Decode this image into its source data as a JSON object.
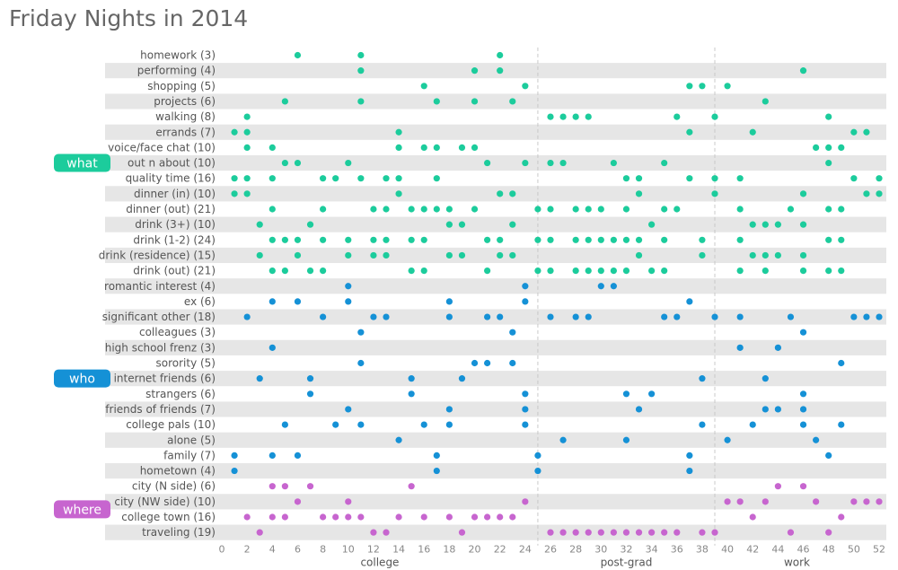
{
  "chart_data": {
    "type": "scatter",
    "title": "Friday Nights in 2014",
    "x_ticks": [
      0,
      2,
      4,
      6,
      8,
      10,
      12,
      14,
      16,
      18,
      20,
      22,
      24,
      26,
      28,
      30,
      32,
      34,
      36,
      38,
      40,
      42,
      44,
      46,
      48,
      50,
      52
    ],
    "xlim": [
      0,
      52
    ],
    "grid": "vertical dashed lines at x = 25 and x = 39 separating periods",
    "periods": [
      {
        "label": "college",
        "from": 0,
        "to": 25
      },
      {
        "label": "post-grad",
        "from": 25,
        "to": 39
      },
      {
        "label": "work",
        "from": 39,
        "to": 52
      }
    ],
    "categories": [
      {
        "label": "what",
        "color": "#1ccc9c"
      },
      {
        "label": "who",
        "color": "#1591d6"
      },
      {
        "label": "where",
        "color": "#c765cf"
      }
    ],
    "rows": [
      {
        "label": "homework (3)",
        "category": "what",
        "weeks": [
          6,
          11,
          22
        ]
      },
      {
        "label": "performing (4)",
        "category": "what",
        "weeks": [
          11,
          20,
          22,
          46
        ]
      },
      {
        "label": "shopping (5)",
        "category": "what",
        "weeks": [
          16,
          24,
          37,
          38,
          40
        ]
      },
      {
        "label": "projects (6)",
        "category": "what",
        "weeks": [
          5,
          11,
          17,
          20,
          23,
          43
        ]
      },
      {
        "label": "walking (8)",
        "category": "what",
        "weeks": [
          2,
          26,
          27,
          28,
          29,
          36,
          39,
          48
        ]
      },
      {
        "label": "errands (7)",
        "category": "what",
        "weeks": [
          1,
          2,
          14,
          37,
          42,
          50,
          51
        ]
      },
      {
        "label": "voice/face chat (10)",
        "category": "what",
        "weeks": [
          2,
          4,
          14,
          16,
          17,
          19,
          20,
          47,
          48,
          49
        ]
      },
      {
        "label": "out n about (10)",
        "category": "what",
        "weeks": [
          5,
          6,
          10,
          21,
          24,
          26,
          27,
          31,
          35,
          48
        ]
      },
      {
        "label": "quality time (16)",
        "category": "what",
        "weeks": [
          1,
          2,
          4,
          8,
          9,
          11,
          13,
          14,
          17,
          32,
          33,
          37,
          39,
          41,
          50,
          52
        ]
      },
      {
        "label": "dinner (in) (10)",
        "category": "what",
        "weeks": [
          1,
          2,
          14,
          22,
          23,
          33,
          39,
          46,
          51,
          52
        ]
      },
      {
        "label": "dinner (out) (21)",
        "category": "what",
        "weeks": [
          4,
          8,
          12,
          13,
          15,
          16,
          17,
          18,
          20,
          25,
          26,
          28,
          29,
          30,
          32,
          35,
          36,
          41,
          45,
          48,
          49
        ]
      },
      {
        "label": "drink (3+) (10)",
        "category": "what",
        "weeks": [
          3,
          7,
          18,
          19,
          23,
          34,
          42,
          43,
          44,
          46
        ]
      },
      {
        "label": "drink (1-2) (24)",
        "category": "what",
        "weeks": [
          4,
          5,
          6,
          8,
          10,
          12,
          13,
          15,
          16,
          21,
          22,
          25,
          26,
          28,
          29,
          30,
          31,
          32,
          33,
          35,
          38,
          41,
          48,
          49
        ]
      },
      {
        "label": "drink (residence) (15)",
        "category": "what",
        "weeks": [
          3,
          6,
          10,
          12,
          13,
          18,
          19,
          22,
          23,
          33,
          38,
          42,
          43,
          44,
          46
        ]
      },
      {
        "label": "drink (out) (21)",
        "category": "what",
        "weeks": [
          4,
          5,
          7,
          8,
          15,
          16,
          21,
          25,
          26,
          28,
          29,
          30,
          31,
          32,
          34,
          35,
          41,
          43,
          46,
          48,
          49
        ]
      },
      {
        "label": "romantic interest (4)",
        "category": "who",
        "weeks": [
          10,
          24,
          30,
          31
        ]
      },
      {
        "label": "ex (6)",
        "category": "who",
        "weeks": [
          4,
          6,
          10,
          18,
          24,
          37
        ]
      },
      {
        "label": "significant other (18)",
        "category": "who",
        "weeks": [
          2,
          8,
          12,
          13,
          18,
          21,
          22,
          26,
          28,
          29,
          35,
          36,
          39,
          41,
          45,
          50,
          51,
          52
        ]
      },
      {
        "label": "colleagues (3)",
        "category": "who",
        "weeks": [
          11,
          23,
          46
        ]
      },
      {
        "label": "high school frenz (3)",
        "category": "who",
        "weeks": [
          4,
          41,
          44
        ]
      },
      {
        "label": "sorority (5)",
        "category": "who",
        "weeks": [
          11,
          20,
          21,
          23,
          49
        ]
      },
      {
        "label": "internet friends (6)",
        "category": "who",
        "weeks": [
          3,
          7,
          15,
          19,
          38,
          43
        ]
      },
      {
        "label": "strangers (6)",
        "category": "who",
        "weeks": [
          7,
          15,
          24,
          32,
          34,
          46
        ]
      },
      {
        "label": "friends of friends (7)",
        "category": "who",
        "weeks": [
          10,
          18,
          24,
          33,
          43,
          44,
          46
        ]
      },
      {
        "label": "college pals (10)",
        "category": "who",
        "weeks": [
          5,
          9,
          11,
          16,
          18,
          24,
          38,
          42,
          46,
          49
        ]
      },
      {
        "label": "alone (5)",
        "category": "who",
        "weeks": [
          14,
          27,
          32,
          40,
          47
        ]
      },
      {
        "label": "family (7)",
        "category": "who",
        "weeks": [
          1,
          4,
          6,
          17,
          25,
          37,
          48
        ]
      },
      {
        "label": "hometown (4)",
        "category": "who",
        "weeks": [
          1,
          17,
          25,
          37
        ]
      },
      {
        "label": "city (N side) (6)",
        "category": "where",
        "weeks": [
          4,
          5,
          7,
          15,
          44,
          46
        ]
      },
      {
        "label": "city (NW side) (10)",
        "category": "where",
        "weeks": [
          6,
          10,
          24,
          40,
          41,
          43,
          47,
          50,
          51,
          52
        ]
      },
      {
        "label": "college town (16)",
        "category": "where",
        "weeks": [
          2,
          4,
          5,
          8,
          9,
          10,
          11,
          14,
          16,
          18,
          20,
          21,
          22,
          23,
          42,
          49
        ]
      },
      {
        "label": "traveling (19)",
        "category": "where",
        "weeks": [
          3,
          12,
          13,
          19,
          26,
          27,
          28,
          29,
          30,
          31,
          32,
          33,
          34,
          35,
          36,
          38,
          39,
          45,
          48
        ]
      }
    ]
  }
}
